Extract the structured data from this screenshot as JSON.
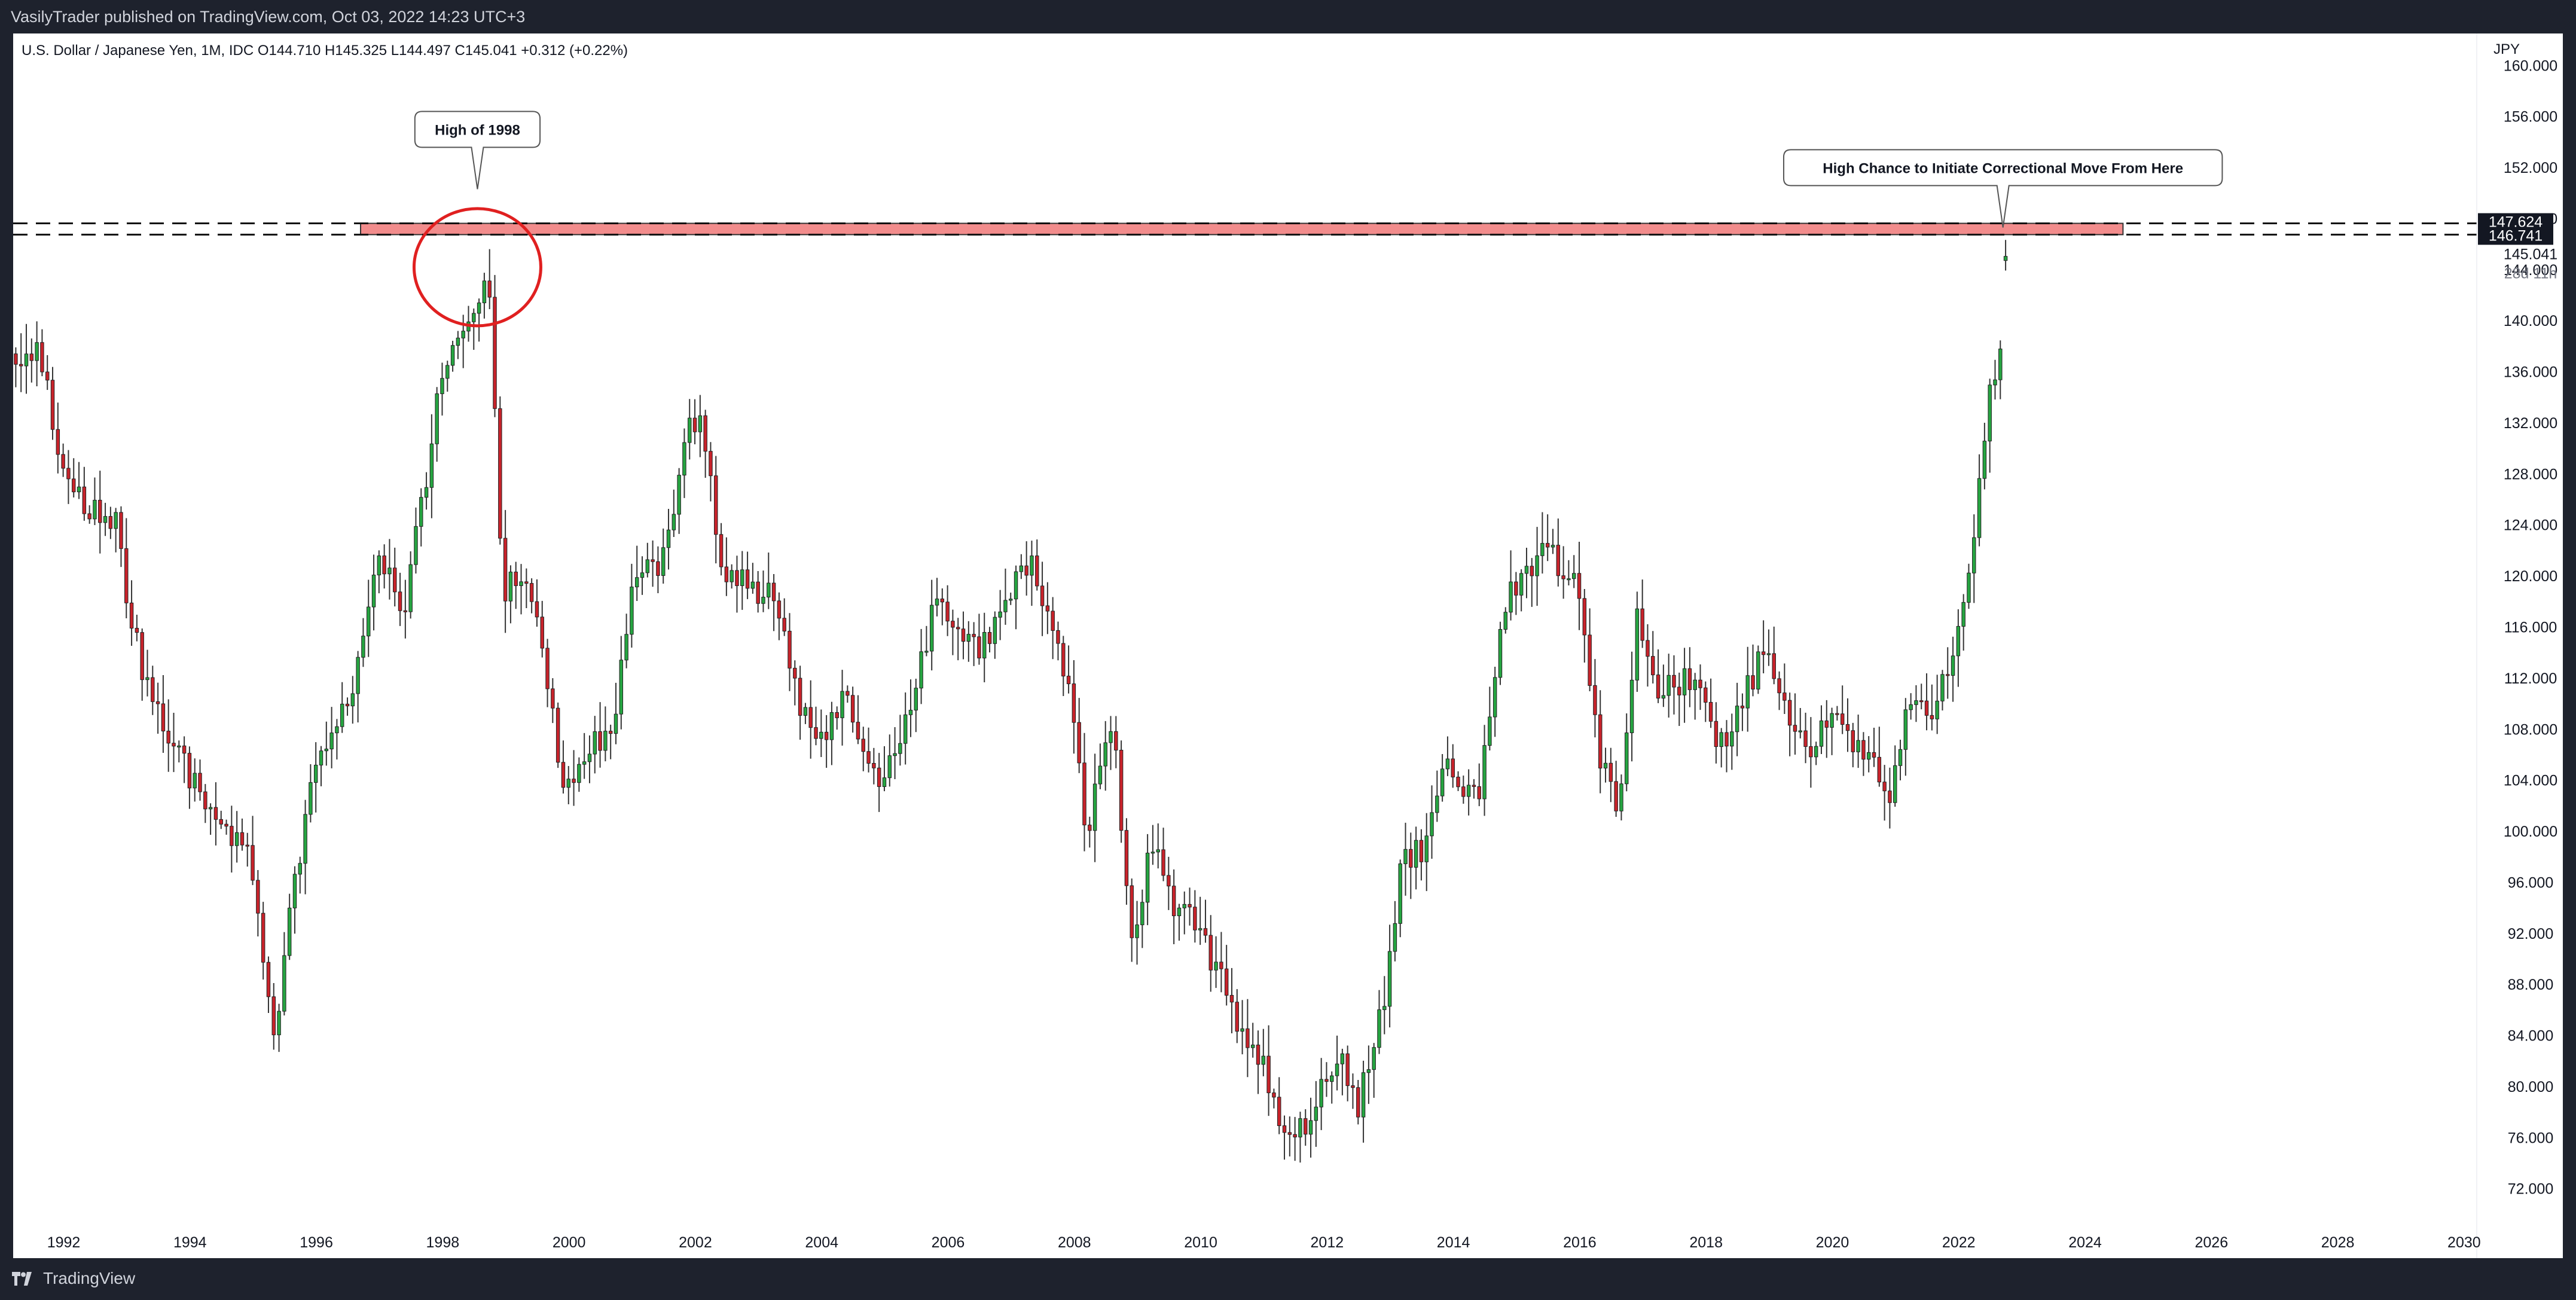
{
  "header": {
    "published_line": "VasilyTrader published on TradingView.com, Oct 03, 2022 14:23 UTC+3"
  },
  "footer": {
    "brand_label": "TradingView",
    "brand_icon": "tradingview-logo-icon"
  },
  "colors": {
    "background": "#ffffff",
    "frame": "#1e222d",
    "up": "#26a541",
    "down": "#c8232b",
    "wick": "#333333",
    "zone_fill": "#f28c8c",
    "circle": "#e02020",
    "tag_bg": "#131722"
  },
  "chart_data": {
    "type": "candlestick",
    "symbol_info": "U.S. Dollar / Japanese Yen, 1M, IDC",
    "ohlc_readout": "O144.710  H145.325  L144.497  C145.041  +0.312 (+0.22%)",
    "currency_label": "JPY",
    "y_ticks": [
      "72.000",
      "76.000",
      "80.000",
      "84.000",
      "88.000",
      "92.000",
      "96.000",
      "100.000",
      "104.000",
      "108.000",
      "112.000",
      "116.000",
      "120.000",
      "124.000",
      "128.000",
      "132.000",
      "136.000",
      "140.000",
      "144.000",
      "148.000",
      "152.000",
      "156.000",
      "160.000"
    ],
    "x_ticks": [
      "1992",
      "1994",
      "1996",
      "1998",
      "2000",
      "2002",
      "2004",
      "2006",
      "2008",
      "2010",
      "2012",
      "2014",
      "2016",
      "2018",
      "2020",
      "2022",
      "2024",
      "2026",
      "2028",
      "2030"
    ],
    "ylim": [
      69.5,
      162.5
    ],
    "xlim": [
      1991.2,
      2030.2
    ],
    "candle_anchors": [
      [
        1991.2,
        137.4
      ],
      [
        1991.6,
        137.6
      ],
      [
        1992.0,
        128.6
      ],
      [
        1992.3,
        125.8
      ],
      [
        1992.8,
        124.7
      ],
      [
        1993.0,
        117.8
      ],
      [
        1993.3,
        111.6
      ],
      [
        1993.7,
        106.9
      ],
      [
        1994.1,
        103.7
      ],
      [
        1994.5,
        99.3
      ],
      [
        1994.9,
        99.2
      ],
      [
        1995.2,
        88.4
      ],
      [
        1995.35,
        84.0
      ],
      [
        1995.6,
        94.3
      ],
      [
        1996.0,
        105.3
      ],
      [
        1996.6,
        111.7
      ],
      [
        1997.0,
        122.4
      ],
      [
        1997.35,
        116.0
      ],
      [
        1997.7,
        126.5
      ],
      [
        1998.0,
        136.2
      ],
      [
        1998.35,
        138.6
      ],
      [
        1998.55,
        140.6
      ],
      [
        1998.7,
        144.4
      ],
      [
        1998.8,
        135.6
      ],
      [
        1998.95,
        118.5
      ],
      [
        1999.3,
        120.5
      ],
      [
        1999.6,
        114.4
      ],
      [
        1999.9,
        102.4
      ],
      [
        2000.3,
        106.5
      ],
      [
        2000.7,
        108.6
      ],
      [
        2001.0,
        120.1
      ],
      [
        2001.5,
        121.2
      ],
      [
        2001.9,
        131.2
      ],
      [
        2002.1,
        133.4
      ],
      [
        2002.4,
        120.3
      ],
      [
        2002.8,
        119.4
      ],
      [
        2003.3,
        117.9
      ],
      [
        2003.7,
        109.0
      ],
      [
        2004.0,
        106.5
      ],
      [
        2004.4,
        110.9
      ],
      [
        2004.9,
        103.6
      ],
      [
        2005.3,
        108.0
      ],
      [
        2005.8,
        117.9
      ],
      [
        2006.1,
        116.1
      ],
      [
        2006.5,
        114.5
      ],
      [
        2006.9,
        117.6
      ],
      [
        2007.3,
        121.7
      ],
      [
        2007.6,
        116.4
      ],
      [
        2007.9,
        111.7
      ],
      [
        2008.2,
        99.7
      ],
      [
        2008.6,
        108.7
      ],
      [
        2008.9,
        90.6
      ],
      [
        2009.2,
        99.1
      ],
      [
        2009.6,
        93.6
      ],
      [
        2009.9,
        92.9
      ],
      [
        2010.3,
        88.8
      ],
      [
        2010.6,
        84.1
      ],
      [
        2011.0,
        82.0
      ],
      [
        2011.3,
        76.7
      ],
      [
        2011.75,
        77.5
      ],
      [
        2012.2,
        82.8
      ],
      [
        2012.5,
        78.6
      ],
      [
        2012.9,
        86.8
      ],
      [
        2013.2,
        97.8
      ],
      [
        2013.5,
        98.4
      ],
      [
        2013.9,
        105.2
      ],
      [
        2014.4,
        101.8
      ],
      [
        2014.8,
        118.2
      ],
      [
        2015.2,
        120.4
      ],
      [
        2015.45,
        123.9
      ],
      [
        2015.7,
        119.8
      ],
      [
        2015.95,
        120.2
      ],
      [
        2016.3,
        106.5
      ],
      [
        2016.6,
        101.3
      ],
      [
        2016.9,
        116.6
      ],
      [
        2017.2,
        111.3
      ],
      [
        2017.6,
        111.8
      ],
      [
        2017.9,
        112.6
      ],
      [
        2018.2,
        106.3
      ],
      [
        2018.6,
        111.0
      ],
      [
        2018.9,
        113.6
      ],
      [
        2019.2,
        110.9
      ],
      [
        2019.6,
        106.3
      ],
      [
        2019.9,
        108.6
      ],
      [
        2020.2,
        107.9
      ],
      [
        2020.5,
        105.6
      ],
      [
        2020.9,
        103.2
      ],
      [
        2021.2,
        110.7
      ],
      [
        2021.6,
        109.7
      ],
      [
        2021.95,
        115.1
      ],
      [
        2022.2,
        121.7
      ],
      [
        2022.35,
        129.8
      ],
      [
        2022.55,
        135.7
      ],
      [
        2022.7,
        138.9
      ],
      [
        2022.75,
        144.7
      ],
      [
        2022.78,
        145.041
      ]
    ],
    "horizontal_lines": [
      147.624,
      146.741
    ],
    "resistance_zone": {
      "x_start": 1996.7,
      "x_end": 2024.6,
      "y_low": 146.741,
      "y_high": 147.624
    },
    "price_tags": [
      {
        "value": 147.624,
        "label": "147.624"
      },
      {
        "value": 146.741,
        "label": "146.741"
      }
    ],
    "last_price_label": "145.041",
    "countdown_label": "28d 11h",
    "annotations": [
      {
        "text": "High of 1998",
        "x": 1998.55,
        "anchor_y": 150.3
      },
      {
        "text": "High Chance to Initiate Correctional Move From Here",
        "x": 2022.7,
        "anchor_y": 147.3
      }
    ],
    "highlight_circle": {
      "x": 1998.55,
      "y": 147.0
    }
  }
}
